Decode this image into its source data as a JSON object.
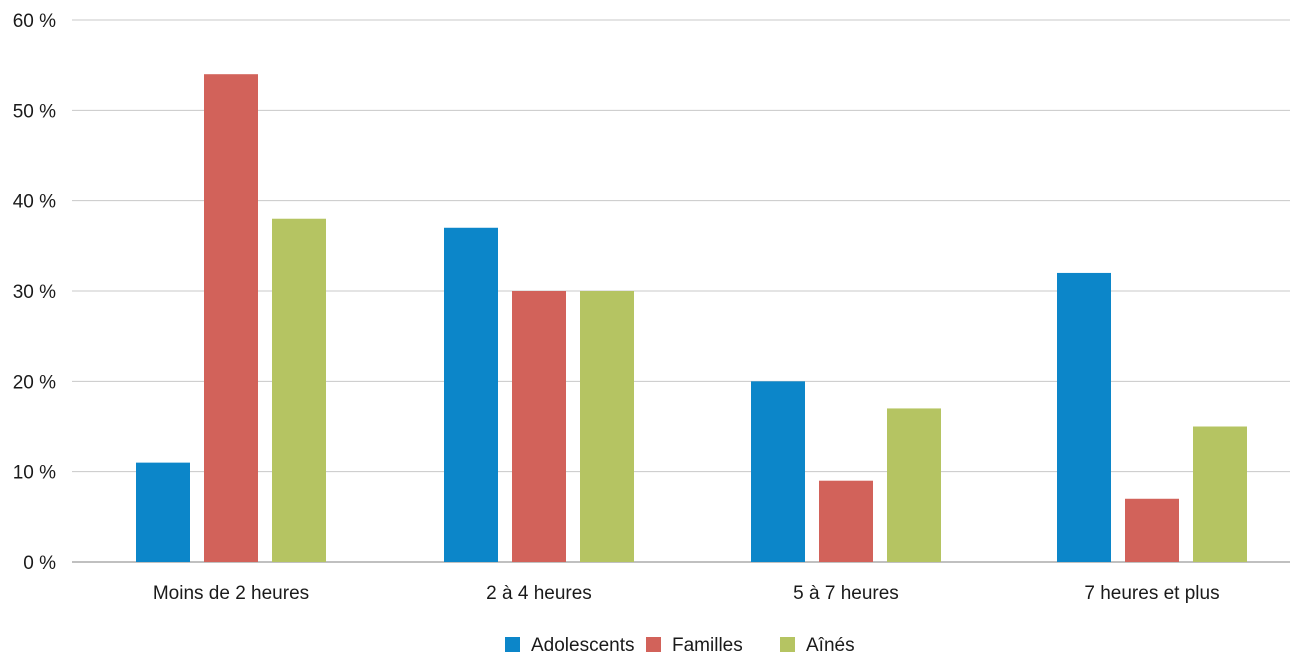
{
  "chart_data": {
    "type": "bar",
    "title": "",
    "xlabel": "",
    "ylabel": "",
    "categories": [
      "Moins de 2 heures",
      "2 à 4 heures",
      "5 à 7 heures",
      "7 heures et plus"
    ],
    "series": [
      {
        "name": "Adolescents",
        "color": "#0c86c9",
        "values": [
          11,
          37,
          20,
          32
        ]
      },
      {
        "name": "Familles",
        "color": "#d2625a",
        "values": [
          54,
          30,
          9,
          7
        ]
      },
      {
        "name": "Aînés",
        "color": "#b5c462",
        "values": [
          38,
          30,
          17,
          15
        ]
      }
    ],
    "ylim": [
      0,
      60
    ],
    "yticks": [
      0,
      10,
      20,
      30,
      40,
      50,
      60
    ],
    "ytick_labels": [
      "0 %",
      "10 %",
      "20 %",
      "30 %",
      "40 %",
      "50 %",
      "60 %"
    ],
    "grid": true,
    "legend_position": "bottom"
  }
}
